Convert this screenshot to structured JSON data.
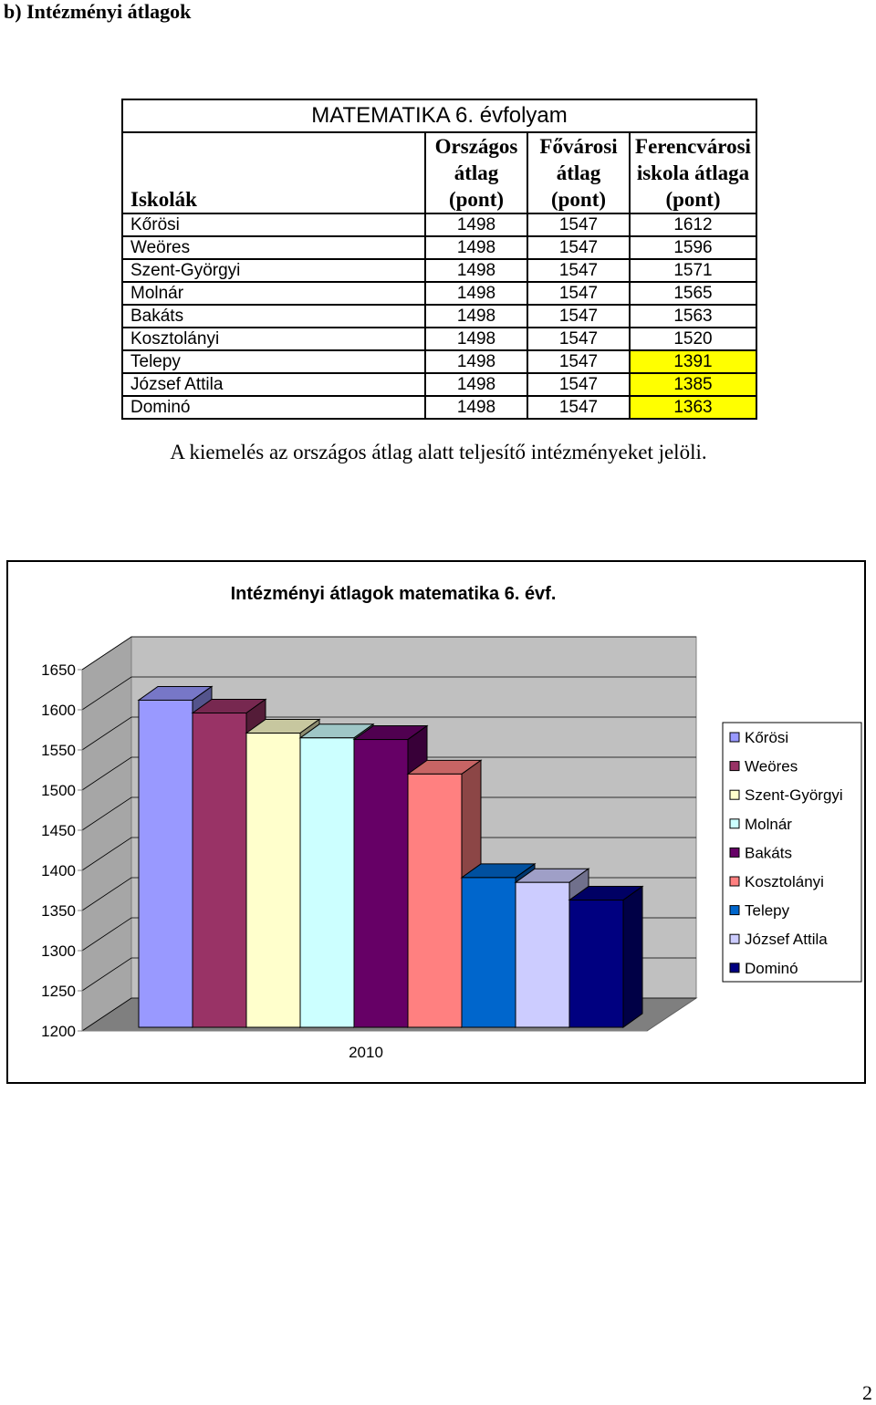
{
  "heading": "b) Intézményi átlagok",
  "table": {
    "title": "MATEMATIKA 6. évfolyam",
    "headers": [
      "Iskolák",
      "Országos átlag (pont)",
      "Fővárosi átlag (pont)",
      "Ferencvárosi iskola átlaga (pont)"
    ],
    "rows": [
      {
        "name": "Kőrösi",
        "orszagos": "1498",
        "fovarosi": "1547",
        "ferencvarosi": "1612",
        "highlight": false
      },
      {
        "name": "Weöres",
        "orszagos": "1498",
        "fovarosi": "1547",
        "ferencvarosi": "1596",
        "highlight": false
      },
      {
        "name": "Szent-Györgyi",
        "orszagos": "1498",
        "fovarosi": "1547",
        "ferencvarosi": "1571",
        "highlight": false
      },
      {
        "name": "Molnár",
        "orszagos": "1498",
        "fovarosi": "1547",
        "ferencvarosi": "1565",
        "highlight": false
      },
      {
        "name": "Bakáts",
        "orszagos": "1498",
        "fovarosi": "1547",
        "ferencvarosi": "1563",
        "highlight": false
      },
      {
        "name": "Kosztolányi",
        "orszagos": "1498",
        "fovarosi": "1547",
        "ferencvarosi": "1520",
        "highlight": false
      },
      {
        "name": "Telepy",
        "orszagos": "1498",
        "fovarosi": "1547",
        "ferencvarosi": "1391",
        "highlight": true
      },
      {
        "name": "József Attila",
        "orszagos": "1498",
        "fovarosi": "1547",
        "ferencvarosi": "1385",
        "highlight": true
      },
      {
        "name": "Dominó",
        "orszagos": "1498",
        "fovarosi": "1547",
        "ferencvarosi": "1363",
        "highlight": true
      }
    ],
    "highlight_color": "#ffff00"
  },
  "note": "A kiemelés az országos átlag alatt teljesítő intézményeket jelöli.",
  "chart_data": {
    "type": "bar",
    "style": "3d-clustered-column",
    "title": "Intézményi átlagok matematika 6. évf.",
    "categories": [
      "2010"
    ],
    "series": [
      {
        "name": "Kőrösi",
        "values": [
          1612
        ],
        "color": "#9999ff"
      },
      {
        "name": "Weöres",
        "values": [
          1596
        ],
        "color": "#993366"
      },
      {
        "name": "Szent-Györgyi",
        "values": [
          1571
        ],
        "color": "#ffffcc"
      },
      {
        "name": "Molnár",
        "values": [
          1565
        ],
        "color": "#ccffff"
      },
      {
        "name": "Bakáts",
        "values": [
          1563
        ],
        "color": "#660066"
      },
      {
        "name": "Kosztolányi",
        "values": [
          1520
        ],
        "color": "#ff8080"
      },
      {
        "name": "Telepy",
        "values": [
          1391
        ],
        "color": "#0066cc"
      },
      {
        "name": "József Attila",
        "values": [
          1385
        ],
        "color": "#ccccff"
      },
      {
        "name": "Dominó",
        "values": [
          1363
        ],
        "color": "#000080"
      }
    ],
    "y_ticks": [
      "1200",
      "1250",
      "1300",
      "1350",
      "1400",
      "1450",
      "1500",
      "1550",
      "1600",
      "1650"
    ],
    "ylim": [
      1200,
      1650
    ],
    "grid": true,
    "legend_position": "right"
  },
  "page_number": "2"
}
